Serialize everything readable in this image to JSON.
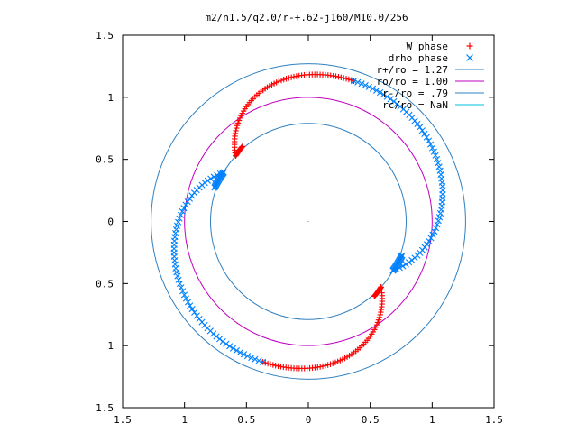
{
  "chart_data": {
    "type": "scatter",
    "title": "m2/n1.5/q2.0/r-+.62-j160/M10.0/256",
    "xlabel": "",
    "ylabel": "",
    "xlim": [
      -1.5,
      1.5
    ],
    "ylim": [
      -1.5,
      1.5
    ],
    "x_tick_labels": [
      "1.5",
      "1",
      "0.5",
      "0",
      "0.5",
      "1",
      "1.5"
    ],
    "y_tick_labels": [
      "1.5",
      "1",
      "0.5",
      "0",
      "0.5",
      "1",
      "1.5"
    ],
    "grid": false,
    "legend_position": "top-right",
    "series": [
      {
        "name": "W phase",
        "marker": "plus",
        "color": "#ff0000",
        "arcs": [
          {
            "radius_start": 1.19,
            "radius_end": 0.79,
            "angle_start_deg": 72,
            "angle_end_deg": 138
          },
          {
            "radius_start": 1.19,
            "radius_end": 0.79,
            "angle_start_deg": 252,
            "angle_end_deg": 318
          }
        ]
      },
      {
        "name": "drho phase",
        "marker": "x",
        "color": "#0080ff",
        "arcs": [
          {
            "radius_start": 1.19,
            "radius_end": 0.79,
            "angle_start_deg": 72,
            "angle_end_deg": -30
          },
          {
            "radius_start": 1.19,
            "radius_end": 0.79,
            "angle_start_deg": 252,
            "angle_end_deg": 150
          }
        ]
      }
    ],
    "circles": [
      {
        "name": "r+/ro = 1.27",
        "label": "r+/ro = 1.27",
        "radius": 1.27,
        "color": "#3080c0"
      },
      {
        "name": "ro/ro = 1.00",
        "label": "ro/ro = 1.00",
        "radius": 1.0,
        "color": "#c000c0"
      },
      {
        "name": "r-/ro = .79",
        "label": "r-/ro = .79",
        "radius": 0.79,
        "color": "#3080c0"
      },
      {
        "name": "rc/ro = NaN",
        "label": "rc/ro = NaN",
        "radius": null,
        "color": "#00c0e0"
      }
    ],
    "legend": [
      {
        "label": "W phase",
        "kind": "plus",
        "color": "#ff0000"
      },
      {
        "label": "drho phase",
        "kind": "x",
        "color": "#0080ff"
      },
      {
        "label": "r+/ro = 1.27",
        "kind": "line",
        "color": "#3080c0"
      },
      {
        "label": "ro/ro = 1.00",
        "kind": "line",
        "color": "#c000c0"
      },
      {
        "label": "r-/ro = .79",
        "kind": "line",
        "color": "#3080c0"
      },
      {
        "label": "rc/ro = NaN",
        "kind": "line",
        "color": "#00c0e0"
      }
    ]
  }
}
